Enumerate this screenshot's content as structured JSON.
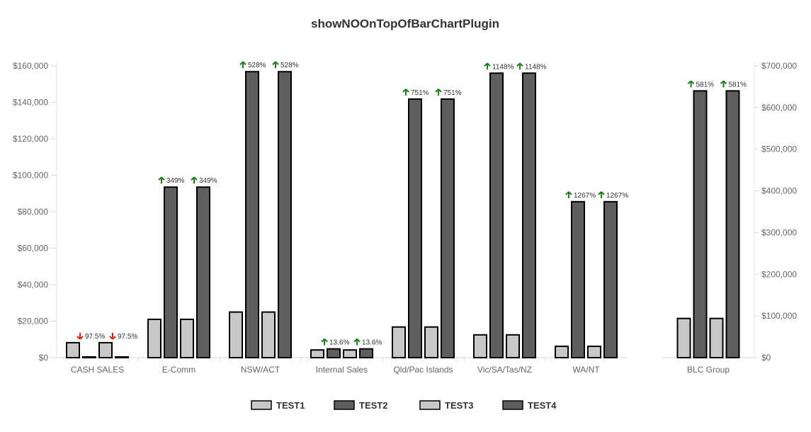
{
  "chart_data": {
    "type": "bar",
    "title": "showNOOnTopOfBarChartPlugin",
    "categories": [
      "CASH SALES",
      "E-Comm",
      "NSW/ACT",
      "Internal Sales",
      "Qld/Pac Islands",
      "Vic/SA/Tas/NZ",
      "WA/NT",
      "BLC Group"
    ],
    "series": [
      {
        "name": "TEST1",
        "axis": "left",
        "color": "#c8c8c8",
        "values": [
          8200,
          21000,
          25000,
          4200,
          16800,
          12500,
          6200,
          null
        ]
      },
      {
        "name": "TEST2",
        "axis": "left",
        "color": "#5f5f5f",
        "values": [
          400,
          93500,
          156800,
          4800,
          141800,
          156000,
          85500,
          null
        ]
      },
      {
        "name": "TEST3",
        "axis": "left",
        "color": "#c8c8c8",
        "values": [
          8200,
          21000,
          25000,
          4200,
          16800,
          12500,
          6200,
          null
        ]
      },
      {
        "name": "TEST4",
        "axis": "left",
        "color": "#5f5f5f",
        "values": [
          400,
          93500,
          156800,
          4800,
          141800,
          156000,
          85500,
          null
        ]
      },
      {
        "name": "TEST1",
        "axis": "right",
        "color": "#c8c8c8",
        "values": [
          null,
          null,
          null,
          null,
          null,
          null,
          null,
          94000
        ]
      },
      {
        "name": "TEST2",
        "axis": "right",
        "color": "#5f5f5f",
        "values": [
          null,
          null,
          null,
          null,
          null,
          null,
          null,
          640000
        ]
      },
      {
        "name": "TEST3",
        "axis": "right",
        "color": "#c8c8c8",
        "values": [
          null,
          null,
          null,
          null,
          null,
          null,
          null,
          94000
        ]
      },
      {
        "name": "TEST4",
        "axis": "right",
        "color": "#5f5f5f",
        "values": [
          null,
          null,
          null,
          null,
          null,
          null,
          null,
          640000
        ]
      }
    ],
    "annotations": [
      {
        "category": "CASH SALES",
        "text": "97.5%",
        "direction": "down"
      },
      {
        "category": "E-Comm",
        "text": "349%",
        "direction": "up"
      },
      {
        "category": "NSW/ACT",
        "text": "528%",
        "direction": "up"
      },
      {
        "category": "Internal Sales",
        "text": "13.6%",
        "direction": "up"
      },
      {
        "category": "Qld/Pac Islands",
        "text": "751%",
        "direction": "up"
      },
      {
        "category": "Vic/SA/Tas/NZ",
        "text": "1148%",
        "direction": "up"
      },
      {
        "category": "WA/NT",
        "text": "1267%",
        "direction": "up"
      },
      {
        "category": "BLC Group",
        "text": "581%",
        "direction": "up"
      }
    ],
    "ylim": [
      0,
      160000
    ],
    "y_ticks": [
      "$0",
      "$20,000",
      "$40,000",
      "$60,000",
      "$80,000",
      "$100,000",
      "$120,000",
      "$140,000",
      "$160,000"
    ],
    "y2lim": [
      0,
      700000
    ],
    "y2_ticks": [
      "$0",
      "$100,000",
      "$200,000",
      "$300,000",
      "$400,000",
      "$500,000",
      "$600,000",
      "$700,000"
    ],
    "legend": {
      "position": "bottom",
      "items": [
        {
          "label": "TEST1",
          "color": "#c8c8c8"
        },
        {
          "label": "TEST2",
          "color": "#5f5f5f"
        },
        {
          "label": "TEST3",
          "color": "#c8c8c8"
        },
        {
          "label": "TEST4",
          "color": "#5f5f5f"
        }
      ]
    },
    "colors": {
      "up": "#1a7f1a",
      "down": "#e0201c",
      "axis": "#dddddd"
    }
  }
}
